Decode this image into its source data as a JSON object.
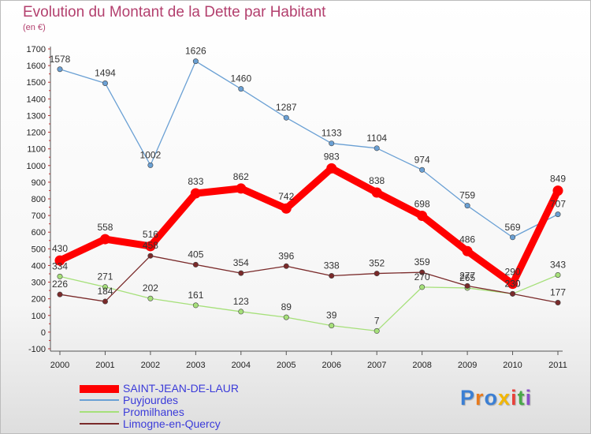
{
  "title": "Evolution du Montant de la Dette par Habitant",
  "subtitle": "(en €)",
  "logo": {
    "text": "Proxiti",
    "colors": [
      "#3b7fd4",
      "#e87b1e",
      "#3b7fd4",
      "#f2b705",
      "#e8413a",
      "#4aa84a",
      "#8a4fc8"
    ]
  },
  "chart_data": {
    "type": "line",
    "x": [
      "2000",
      "2001",
      "2002",
      "2003",
      "2004",
      "2005",
      "2006",
      "2007",
      "2008",
      "2009",
      "2010",
      "2011"
    ],
    "ylim": [
      -100,
      1700
    ],
    "yticks": [
      "-100",
      "0",
      "100",
      "200",
      "300",
      "400",
      "500",
      "600",
      "700",
      "800",
      "900",
      "1000",
      "1100",
      "1200",
      "1300",
      "1400",
      "1500",
      "1600",
      "1700"
    ],
    "grid": false,
    "legend_position": "bottom-left",
    "series": [
      {
        "name": "SAINT-JEAN-DE-LAUR",
        "color": "#ff0000",
        "values": [
          430,
          558,
          516,
          833,
          862,
          742,
          983,
          838,
          698,
          486,
          290,
          849
        ],
        "labels": [
          "430",
          "558",
          "516",
          "833",
          "862",
          "742",
          "983",
          "838",
          "698",
          "486",
          "290",
          "849"
        ]
      },
      {
        "name": "Puyjourdes",
        "color": "#6aa0d4",
        "values": [
          1578,
          1494,
          1002,
          1626,
          1460,
          1287,
          1133,
          1104,
          974,
          759,
          569,
          707
        ],
        "labels": [
          "1578",
          "1494",
          "1002",
          "1626",
          "1460",
          "1287",
          "1133",
          "1104",
          "974",
          "759",
          "569",
          "707"
        ]
      },
      {
        "name": "Promilhanes",
        "color": "#a6e07a",
        "values": [
          334,
          271,
          202,
          161,
          123,
          89,
          39,
          7,
          270,
          265,
          230,
          343
        ],
        "labels": [
          "334",
          "271",
          "202",
          "161",
          "123",
          "89",
          "39",
          "7",
          "270",
          "265",
          "230",
          "343"
        ]
      },
      {
        "name": "Limogne-en-Quercy",
        "color": "#7a2a2a",
        "values": [
          226,
          184,
          458,
          405,
          354,
          396,
          338,
          352,
          359,
          277,
          230,
          177
        ],
        "labels": [
          "226",
          "184",
          "458",
          "405",
          "354",
          "396",
          "338",
          "352",
          "359",
          "277",
          "230",
          "177"
        ]
      }
    ]
  }
}
